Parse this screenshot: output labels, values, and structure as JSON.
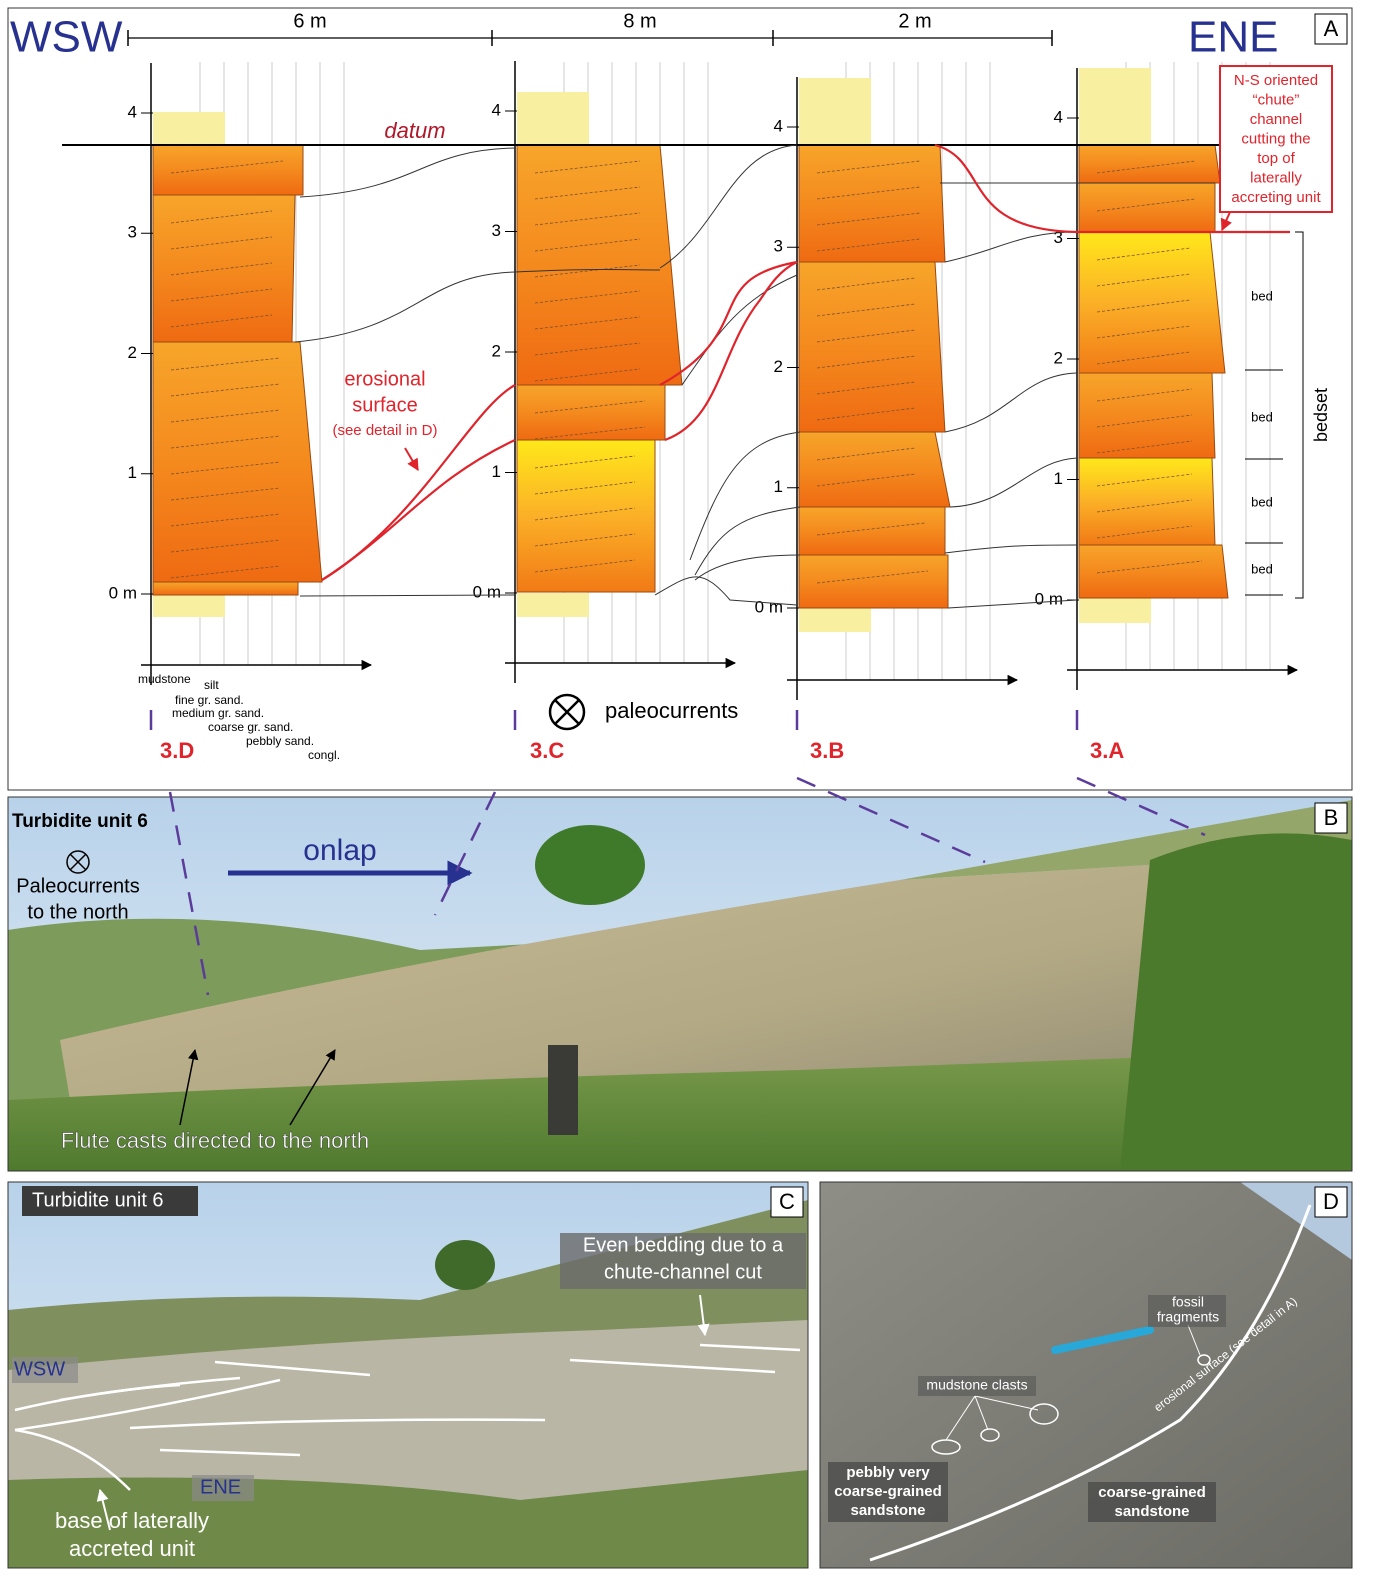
{
  "panel_a": {
    "letter": "A",
    "left_label": "WSW",
    "right_label": "ENE",
    "spacings": [
      "6 m",
      "8 m",
      "2 m"
    ],
    "datum": "datum",
    "columns": [
      {
        "id": "3.D",
        "ticks": [
          "4",
          "3",
          "2",
          "1",
          "0 m"
        ]
      },
      {
        "id": "3.C",
        "ticks": [
          "4",
          "3",
          "2",
          "1",
          "0 m"
        ]
      },
      {
        "id": "3.B",
        "ticks": [
          "4",
          "3",
          "2",
          "1",
          "0 m"
        ]
      },
      {
        "id": "3.A",
        "ticks": [
          "4",
          "3",
          "2",
          "1",
          "0 m"
        ]
      }
    ],
    "grain_sizes": [
      "mudstone",
      "silt",
      "fine gr. sand.",
      "medium gr. sand.",
      "coarse gr. sand.",
      "pebbly sand.",
      "congl."
    ],
    "erosional": [
      "erosional",
      "surface",
      "(see detail in D)"
    ],
    "paleocurrents": "paleocurrents",
    "chute_note": [
      "N-S oriented",
      "“chute”",
      "channel",
      "cutting the",
      "top of",
      "laterally",
      "accreting unit"
    ],
    "beds": [
      "bed",
      "bed",
      "bed",
      "bed"
    ],
    "bedset": "bedset"
  },
  "panel_b": {
    "letter": "B",
    "title": "Turbidite unit 6",
    "paleo": [
      "Paleocurrents",
      "to the north"
    ],
    "onlap": "onlap",
    "flute": "Flute casts directed to the north"
  },
  "panel_c": {
    "letter": "C",
    "title": "Turbidite unit 6",
    "wsw": "WSW",
    "ene": "ENE",
    "even": [
      "Even bedding due to a",
      "chute-channel cut"
    ],
    "base": [
      "base of laterally",
      "accreted unit"
    ]
  },
  "panel_d": {
    "letter": "D",
    "fossil": [
      "fossil",
      "fragments"
    ],
    "mud": "mudstone clasts",
    "erosional": "erosional surface (see detail in A)",
    "pebbly": [
      "pebbly very",
      "coarse-grained",
      "sandstone"
    ],
    "coarse": [
      "coarse-grained",
      "sandstone"
    ]
  }
}
